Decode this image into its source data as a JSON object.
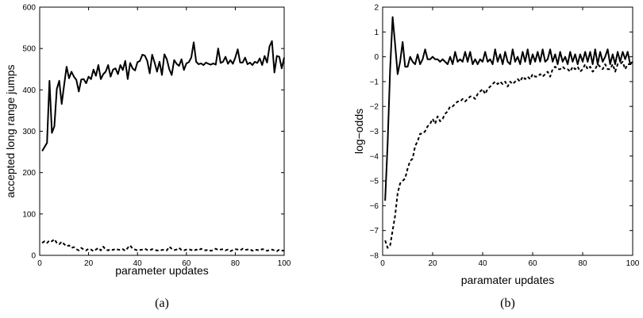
{
  "chart_data": [
    {
      "type": "line",
      "caption": "(a)",
      "xlabel": "parameter updates",
      "ylabel": "accepted long range jumps",
      "xlim": [
        0,
        100
      ],
      "ylim": [
        0,
        600
      ],
      "xticks": [
        0,
        20,
        40,
        60,
        80,
        100
      ],
      "yticks": [
        0,
        100,
        200,
        300,
        400,
        500,
        600
      ],
      "grid": false,
      "series": [
        {
          "style": "solid",
          "x": [
            1,
            2,
            3,
            4,
            5,
            6,
            7,
            8,
            9,
            10,
            11,
            12,
            13,
            14,
            15,
            16,
            17,
            18,
            19,
            20,
            21,
            22,
            23,
            24,
            25,
            26,
            27,
            28,
            29,
            30,
            31,
            32,
            33,
            34,
            35,
            36,
            37,
            38,
            39,
            40,
            41,
            42,
            43,
            44,
            45,
            46,
            47,
            48,
            49,
            50,
            51,
            52,
            53,
            54,
            55,
            56,
            57,
            58,
            59,
            60,
            61,
            62,
            63,
            64,
            65,
            66,
            67,
            68,
            69,
            70,
            71,
            72,
            73,
            74,
            75,
            76,
            77,
            78,
            79,
            80,
            81,
            82,
            83,
            84,
            85,
            86,
            87,
            88,
            89,
            90,
            91,
            92,
            93,
            94,
            95,
            96,
            97,
            98,
            99,
            100
          ],
          "values": [
            252,
            262,
            272,
            422,
            296,
            312,
            402,
            422,
            366,
            412,
            456,
            428,
            444,
            432,
            424,
            396,
            425,
            426,
            416,
            432,
            426,
            449,
            434,
            460,
            426,
            438,
            444,
            460,
            432,
            449,
            452,
            438,
            460,
            448,
            470,
            426,
            465,
            452,
            447,
            467,
            470,
            485,
            483,
            470,
            440,
            485,
            466,
            444,
            468,
            436,
            486,
            474,
            450,
            436,
            472,
            463,
            458,
            474,
            448,
            464,
            467,
            478,
            515,
            468,
            462,
            464,
            460,
            466,
            463,
            461,
            464,
            461,
            500,
            465,
            468,
            480,
            463,
            472,
            463,
            478,
            498,
            466,
            466,
            478,
            462,
            466,
            460,
            468,
            465,
            476,
            460,
            482,
            466,
            505,
            518,
            442,
            482,
            480,
            452,
            478
          ]
        },
        {
          "style": "dashed",
          "x": [
            1,
            2,
            3,
            4,
            5,
            6,
            7,
            8,
            9,
            10,
            11,
            12,
            13,
            14,
            15,
            16,
            17,
            18,
            19,
            20,
            21,
            22,
            23,
            24,
            25,
            26,
            27,
            28,
            29,
            30,
            31,
            32,
            33,
            34,
            35,
            36,
            37,
            38,
            39,
            40,
            41,
            42,
            43,
            44,
            45,
            46,
            47,
            48,
            49,
            50,
            51,
            52,
            53,
            54,
            55,
            56,
            57,
            58,
            59,
            60,
            61,
            62,
            63,
            64,
            65,
            66,
            67,
            68,
            69,
            70,
            71,
            72,
            73,
            74,
            75,
            76,
            77,
            78,
            79,
            80,
            81,
            82,
            83,
            84,
            85,
            86,
            87,
            88,
            89,
            90,
            91,
            92,
            93,
            94,
            95,
            96,
            97,
            98,
            99,
            100
          ],
          "values": [
            30,
            34,
            30,
            36,
            34,
            39,
            30,
            27,
            33,
            27,
            22,
            24,
            18,
            20,
            15,
            12,
            18,
            14,
            12,
            16,
            14,
            10,
            14,
            18,
            12,
            21,
            14,
            12,
            15,
            13,
            16,
            14,
            13,
            15,
            11,
            18,
            24,
            16,
            14,
            12,
            13,
            14,
            16,
            13,
            12,
            15,
            13,
            12,
            11,
            13,
            14,
            12,
            21,
            16,
            13,
            14,
            18,
            13,
            12,
            14,
            15,
            13,
            11,
            14,
            12,
            16,
            13,
            12,
            14,
            11,
            13,
            16,
            13,
            14,
            15,
            12,
            14,
            10,
            13,
            15,
            14,
            12,
            16,
            13,
            14,
            15,
            11,
            14,
            13,
            12,
            15,
            14,
            11,
            13,
            14,
            12,
            10,
            14,
            12,
            11
          ]
        }
      ]
    },
    {
      "type": "line",
      "caption": "(b)",
      "xlabel": "paramater updates",
      "ylabel": "log−odds",
      "xlim": [
        0,
        100
      ],
      "ylim": [
        -8,
        2
      ],
      "xticks": [
        0,
        20,
        40,
        60,
        80,
        100
      ],
      "yticks": [
        -8,
        -7,
        -6,
        -5,
        -4,
        -3,
        -2,
        -1,
        0,
        1,
        2
      ],
      "grid": false,
      "series": [
        {
          "style": "solid",
          "x": [
            1,
            2,
            3,
            4,
            5,
            6,
            7,
            8,
            9,
            10,
            11,
            12,
            13,
            14,
            15,
            16,
            17,
            18,
            19,
            20,
            21,
            22,
            23,
            24,
            25,
            26,
            27,
            28,
            29,
            30,
            31,
            32,
            33,
            34,
            35,
            36,
            37,
            38,
            39,
            40,
            41,
            42,
            43,
            44,
            45,
            46,
            47,
            48,
            49,
            50,
            51,
            52,
            53,
            54,
            55,
            56,
            57,
            58,
            59,
            60,
            61,
            62,
            63,
            64,
            65,
            66,
            67,
            68,
            69,
            70,
            71,
            72,
            73,
            74,
            75,
            76,
            77,
            78,
            79,
            80,
            81,
            82,
            83,
            84,
            85,
            86,
            87,
            88,
            89,
            90,
            91,
            92,
            93,
            94,
            95,
            96,
            97,
            98,
            99,
            100
          ],
          "values": [
            -5.8,
            -3.5,
            -0.5,
            1.6,
            0.5,
            -0.7,
            -0.2,
            0.6,
            -0.4,
            -0.4,
            0.0,
            -0.2,
            -0.3,
            0.1,
            -0.3,
            -0.1,
            0.3,
            -0.1,
            -0.1,
            0.0,
            -0.1,
            -0.1,
            -0.2,
            -0.1,
            -0.2,
            -0.3,
            0.0,
            -0.3,
            0.2,
            -0.2,
            -0.1,
            -0.2,
            0.2,
            -0.2,
            0.2,
            -0.3,
            -0.1,
            -0.3,
            -0.1,
            -0.2,
            0.2,
            -0.2,
            -0.1,
            -0.3,
            0.3,
            -0.2,
            0.1,
            -0.3,
            0.2,
            -0.2,
            -0.3,
            0.3,
            -0.2,
            0.0,
            -0.3,
            0.2,
            -0.2,
            0.3,
            -0.3,
            0.1,
            -0.2,
            0.2,
            -0.2,
            0.3,
            -0.2,
            -0.1,
            0.3,
            -0.2,
            0.1,
            -0.3,
            0.2,
            -0.2,
            0.0,
            -0.3,
            0.2,
            -0.2,
            0.1,
            -0.3,
            0.1,
            -0.2,
            0.2,
            -0.2,
            0.2,
            -0.3,
            0.3,
            -0.3,
            0.2,
            -0.2,
            0.0,
            0.3,
            -0.3,
            0.1,
            -0.3,
            0.2,
            -0.2,
            0.2,
            -0.1,
            0.2,
            -0.3,
            -0.2
          ]
        },
        {
          "style": "dashed",
          "x": [
            1,
            2,
            3,
            4,
            5,
            6,
            7,
            8,
            9,
            10,
            11,
            12,
            13,
            14,
            15,
            16,
            17,
            18,
            19,
            20,
            21,
            22,
            23,
            24,
            25,
            26,
            27,
            28,
            29,
            30,
            31,
            32,
            33,
            34,
            35,
            36,
            37,
            38,
            39,
            40,
            41,
            42,
            43,
            44,
            45,
            46,
            47,
            48,
            49,
            50,
            51,
            52,
            53,
            54,
            55,
            56,
            57,
            58,
            59,
            60,
            61,
            62,
            63,
            64,
            65,
            66,
            67,
            68,
            69,
            70,
            71,
            72,
            73,
            74,
            75,
            76,
            77,
            78,
            79,
            80,
            81,
            82,
            83,
            84,
            85,
            86,
            87,
            88,
            89,
            90,
            91,
            92,
            93,
            94,
            95,
            96,
            97,
            98,
            99,
            100
          ],
          "values": [
            -7.4,
            -7.7,
            -7.6,
            -7.0,
            -6.4,
            -5.5,
            -5.1,
            -5.0,
            -4.9,
            -4.5,
            -4.2,
            -4.1,
            -3.6,
            -3.4,
            -3.1,
            -3.1,
            -3.0,
            -2.8,
            -2.7,
            -2.5,
            -2.7,
            -2.4,
            -2.6,
            -2.5,
            -2.3,
            -2.2,
            -2.0,
            -2.0,
            -1.9,
            -1.8,
            -1.8,
            -1.7,
            -1.8,
            -1.7,
            -1.6,
            -1.6,
            -1.7,
            -1.5,
            -1.4,
            -1.3,
            -1.5,
            -1.3,
            -1.2,
            -1.1,
            -1.0,
            -1.1,
            -1.0,
            -1.1,
            -1.0,
            -1.2,
            -1.0,
            -1.1,
            -1.0,
            -0.9,
            -1.0,
            -0.8,
            -0.9,
            -0.8,
            -0.9,
            -0.7,
            -0.8,
            -0.8,
            -0.7,
            -0.8,
            -0.7,
            -0.6,
            -0.8,
            -0.5,
            -0.4,
            -0.5,
            -0.5,
            -0.4,
            -0.5,
            -0.5,
            -0.6,
            -0.4,
            -0.5,
            -0.4,
            -0.6,
            -0.5,
            -0.3,
            -0.5,
            -0.4,
            -0.6,
            -0.5,
            -0.3,
            -0.4,
            -0.5,
            -0.3,
            -0.5,
            -0.5,
            -0.3,
            -0.6,
            -0.3,
            -0.3,
            -0.2,
            -0.5,
            -0.3,
            -0.3,
            -0.3
          ]
        }
      ]
    }
  ]
}
